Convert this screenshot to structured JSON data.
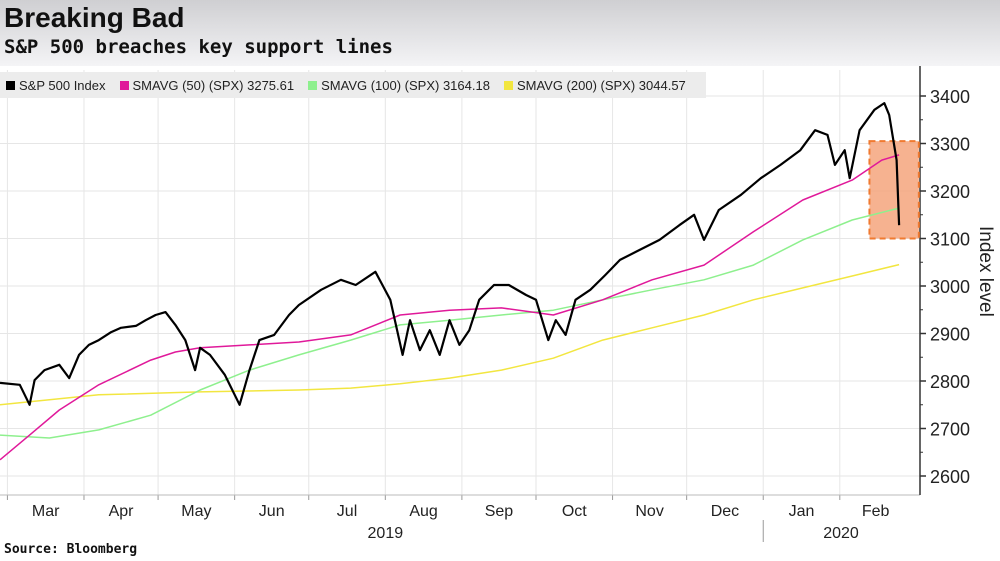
{
  "title": "Breaking Bad",
  "subtitle": "S&P 500 breaches key support lines",
  "source": "Source: Bloomberg",
  "chart_data": {
    "type": "line",
    "ylabel": "Index level",
    "ylim": [
      2560,
      3460
    ],
    "yticks": [
      "2600",
      "2700",
      "2800",
      "2900",
      "3000",
      "3100",
      "3200",
      "3300",
      "3400"
    ],
    "xlim": [
      "2019-02-26",
      "2020-03-04"
    ],
    "xticks": [
      "Mar",
      "Apr",
      "May",
      "Jun",
      "Jul",
      "Aug",
      "Sep",
      "Oct",
      "Nov",
      "Dec",
      "Jan",
      "Feb"
    ],
    "years": [
      "2019",
      "2020"
    ],
    "grid": true,
    "legend_position": "top-left",
    "highlight": {
      "y_range": [
        3100,
        3305
      ],
      "x_range": [
        "2020-02-13",
        "2020-03-04"
      ],
      "color": "#f4a47c"
    },
    "series": [
      {
        "name": "S&P 500 Index",
        "label": "S&P 500 Index",
        "color": "#000000",
        "points": [
          [
            "2019-02-26",
            2796
          ],
          [
            "2019-03-06",
            2792
          ],
          [
            "2019-03-10",
            2750
          ],
          [
            "2019-03-12",
            2802
          ],
          [
            "2019-03-16",
            2823
          ],
          [
            "2019-03-22",
            2834
          ],
          [
            "2019-03-26",
            2806
          ],
          [
            "2019-03-30",
            2855
          ],
          [
            "2019-04-03",
            2876
          ],
          [
            "2019-04-07",
            2886
          ],
          [
            "2019-04-12",
            2903
          ],
          [
            "2019-04-16",
            2912
          ],
          [
            "2019-04-22",
            2916
          ],
          [
            "2019-04-26",
            2928
          ],
          [
            "2019-04-30",
            2939
          ],
          [
            "2019-05-04",
            2945
          ],
          [
            "2019-05-08",
            2918
          ],
          [
            "2019-05-12",
            2886
          ],
          [
            "2019-05-16",
            2823
          ],
          [
            "2019-05-18",
            2870
          ],
          [
            "2019-05-22",
            2855
          ],
          [
            "2019-05-28",
            2813
          ],
          [
            "2019-06-03",
            2750
          ],
          [
            "2019-06-07",
            2823
          ],
          [
            "2019-06-11",
            2886
          ],
          [
            "2019-06-17",
            2897
          ],
          [
            "2019-06-23",
            2939
          ],
          [
            "2019-06-27",
            2960
          ],
          [
            "2019-07-06",
            2992
          ],
          [
            "2019-07-14",
            3013
          ],
          [
            "2019-07-20",
            3002
          ],
          [
            "2019-07-28",
            3030
          ],
          [
            "2019-08-03",
            2971
          ],
          [
            "2019-08-08",
            2855
          ],
          [
            "2019-08-11",
            2928
          ],
          [
            "2019-08-15",
            2865
          ],
          [
            "2019-08-19",
            2907
          ],
          [
            "2019-08-23",
            2855
          ],
          [
            "2019-08-27",
            2928
          ],
          [
            "2019-08-31",
            2876
          ],
          [
            "2019-09-04",
            2907
          ],
          [
            "2019-09-08",
            2971
          ],
          [
            "2019-09-14",
            3002
          ],
          [
            "2019-09-20",
            3002
          ],
          [
            "2019-09-27",
            2981
          ],
          [
            "2019-10-01",
            2971
          ],
          [
            "2019-10-06",
            2886
          ],
          [
            "2019-10-09",
            2928
          ],
          [
            "2019-10-13",
            2897
          ],
          [
            "2019-10-17",
            2971
          ],
          [
            "2019-10-23",
            2992
          ],
          [
            "2019-10-29",
            3023
          ],
          [
            "2019-11-04",
            3055
          ],
          [
            "2019-11-12",
            3076
          ],
          [
            "2019-11-20",
            3097
          ],
          [
            "2019-11-28",
            3128
          ],
          [
            "2019-12-04",
            3150
          ],
          [
            "2019-12-08",
            3097
          ],
          [
            "2019-12-14",
            3160
          ],
          [
            "2019-12-23",
            3192
          ],
          [
            "2019-12-31",
            3227
          ],
          [
            "2020-01-08",
            3255
          ],
          [
            "2020-01-16",
            3286
          ],
          [
            "2020-01-22",
            3328
          ],
          [
            "2020-01-27",
            3318
          ],
          [
            "2020-01-30",
            3255
          ],
          [
            "2020-02-03",
            3286
          ],
          [
            "2020-02-05",
            3227
          ],
          [
            "2020-02-09",
            3328
          ],
          [
            "2020-02-15",
            3371
          ],
          [
            "2020-02-19",
            3385
          ],
          [
            "2020-02-21",
            3360
          ],
          [
            "2020-02-24",
            3265
          ],
          [
            "2020-02-25",
            3128
          ]
        ]
      },
      {
        "name": "SMAVG (50) (SPX)",
        "label": "SMAVG (50) (SPX) 3275.61",
        "color": "#e0199a",
        "points": [
          [
            "2019-02-26",
            2634
          ],
          [
            "2019-03-10",
            2686
          ],
          [
            "2019-03-22",
            2739
          ],
          [
            "2019-04-07",
            2792
          ],
          [
            "2019-04-28",
            2844
          ],
          [
            "2019-05-08",
            2861
          ],
          [
            "2019-05-18",
            2870
          ],
          [
            "2019-06-07",
            2876
          ],
          [
            "2019-06-27",
            2882
          ],
          [
            "2019-07-18",
            2897
          ],
          [
            "2019-08-07",
            2939
          ],
          [
            "2019-08-27",
            2949
          ],
          [
            "2019-09-17",
            2954
          ],
          [
            "2019-10-08",
            2939
          ],
          [
            "2019-10-28",
            2971
          ],
          [
            "2019-11-17",
            3013
          ],
          [
            "2019-12-08",
            3044
          ],
          [
            "2019-12-28",
            3114
          ],
          [
            "2020-01-17",
            3181
          ],
          [
            "2020-02-06",
            3223
          ],
          [
            "2020-02-18",
            3265
          ],
          [
            "2020-02-25",
            3276
          ]
        ]
      },
      {
        "name": "SMAVG (100) (SPX)",
        "label": "SMAVG (100) (SPX) 3164.18",
        "color": "#8ef08e",
        "points": [
          [
            "2019-02-26",
            2686
          ],
          [
            "2019-03-18",
            2680
          ],
          [
            "2019-04-07",
            2697
          ],
          [
            "2019-04-28",
            2728
          ],
          [
            "2019-05-18",
            2781
          ],
          [
            "2019-06-07",
            2823
          ],
          [
            "2019-06-27",
            2855
          ],
          [
            "2019-07-18",
            2886
          ],
          [
            "2019-08-07",
            2918
          ],
          [
            "2019-08-27",
            2928
          ],
          [
            "2019-09-17",
            2939
          ],
          [
            "2019-10-08",
            2949
          ],
          [
            "2019-10-28",
            2971
          ],
          [
            "2019-11-17",
            2992
          ],
          [
            "2019-12-08",
            3013
          ],
          [
            "2019-12-28",
            3044
          ],
          [
            "2020-01-17",
            3097
          ],
          [
            "2020-02-06",
            3139
          ],
          [
            "2020-02-25",
            3164
          ]
        ]
      },
      {
        "name": "SMAVG (200) (SPX)",
        "label": "SMAVG (200) (SPX) 3044.57",
        "color": "#f2e640",
        "points": [
          [
            "2019-02-26",
            2750
          ],
          [
            "2019-04-07",
            2771
          ],
          [
            "2019-05-18",
            2777
          ],
          [
            "2019-06-27",
            2781
          ],
          [
            "2019-07-18",
            2785
          ],
          [
            "2019-08-07",
            2794
          ],
          [
            "2019-08-27",
            2806
          ],
          [
            "2019-09-17",
            2823
          ],
          [
            "2019-10-08",
            2848
          ],
          [
            "2019-10-28",
            2886
          ],
          [
            "2019-11-17",
            2912
          ],
          [
            "2019-12-08",
            2939
          ],
          [
            "2019-12-28",
            2971
          ],
          [
            "2020-01-17",
            2996
          ],
          [
            "2020-02-06",
            3021
          ],
          [
            "2020-02-25",
            3045
          ]
        ]
      }
    ]
  }
}
